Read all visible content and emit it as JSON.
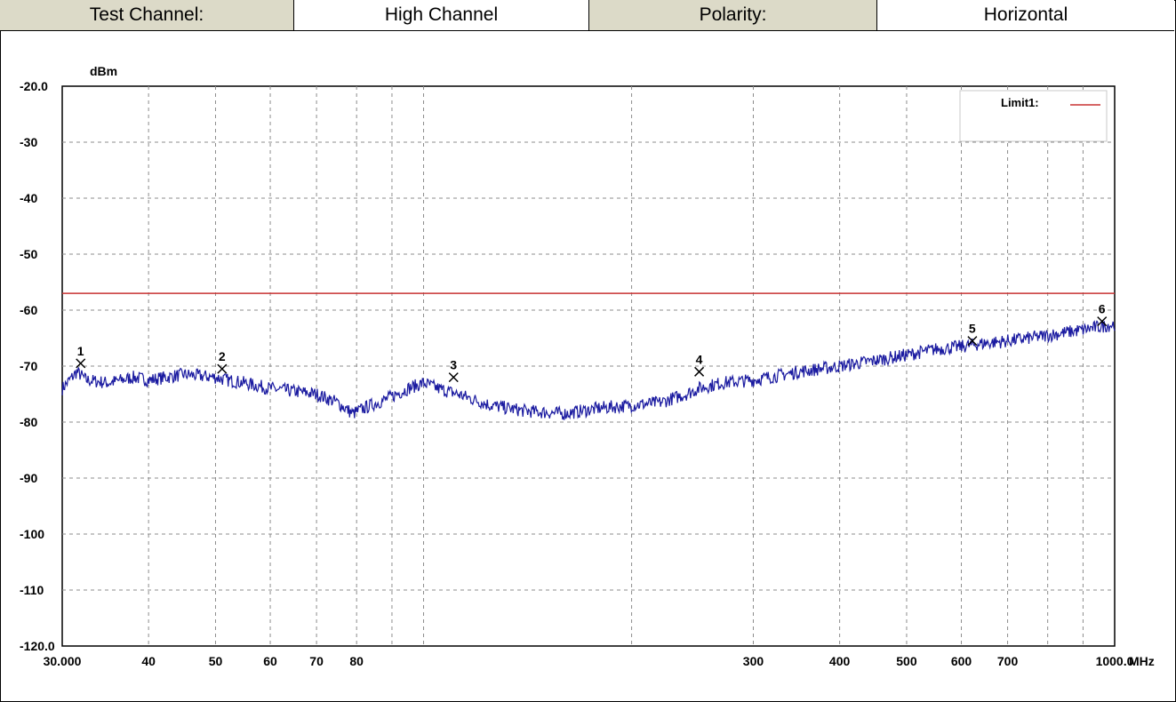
{
  "header": {
    "channel_label": "Test Channel:",
    "channel_value": "High Channel",
    "polarity_label": "Polarity:",
    "polarity_value": "Horizontal"
  },
  "colors": {
    "header_label_bg": "#dcdac8",
    "trace": "#1a1aa0",
    "limit": "#c83232",
    "grid": "#8c8c8c"
  },
  "chart_data": {
    "type": "line",
    "y_unit": "dBm",
    "x_unit": "MHz",
    "x_scale": "log",
    "xlim": [
      30,
      1000
    ],
    "ylim": [
      -120,
      -20
    ],
    "y_ticks": [
      "-20.0",
      "-30",
      "-40",
      "-50",
      "-60",
      "-70",
      "-80",
      "-90",
      "-100",
      "-110",
      "-120.0"
    ],
    "x_ticks": [
      {
        "label": "30.000",
        "value": 30
      },
      {
        "label": "40",
        "value": 40
      },
      {
        "label": "50",
        "value": 50
      },
      {
        "label": "60",
        "value": 60
      },
      {
        "label": "70",
        "value": 70
      },
      {
        "label": "80",
        "value": 80
      },
      {
        "label": "300",
        "value": 300
      },
      {
        "label": "400",
        "value": 400
      },
      {
        "label": "500",
        "value": 500
      },
      {
        "label": "600",
        "value": 600
      },
      {
        "label": "700",
        "value": 700
      },
      {
        "label": "1000.0",
        "value": 1000
      }
    ],
    "extra_gridlines": [
      90,
      100,
      200,
      800,
      900
    ],
    "grid": true,
    "legend": {
      "position": "top-right",
      "entries": [
        {
          "label": "Limit1:"
        }
      ]
    },
    "limit": -57,
    "series": [
      {
        "type": "trace",
        "points": [
          [
            30,
            -74
          ],
          [
            31.5,
            -71
          ],
          [
            32.5,
            -72.5
          ],
          [
            35,
            -73
          ],
          [
            38,
            -72
          ],
          [
            40,
            -72.5
          ],
          [
            45,
            -71.5
          ],
          [
            50,
            -72
          ],
          [
            52,
            -72.5
          ],
          [
            55,
            -73
          ],
          [
            60,
            -74
          ],
          [
            65,
            -74.5
          ],
          [
            70,
            -75
          ],
          [
            75,
            -76.5
          ],
          [
            79,
            -78.5
          ],
          [
            82,
            -77.5
          ],
          [
            88,
            -76
          ],
          [
            95,
            -74
          ],
          [
            100,
            -73
          ],
          [
            105,
            -74
          ],
          [
            112,
            -75
          ],
          [
            125,
            -77
          ],
          [
            140,
            -78
          ],
          [
            160,
            -78.5
          ],
          [
            180,
            -77.5
          ],
          [
            200,
            -77
          ],
          [
            220,
            -76.5
          ],
          [
            240,
            -75
          ],
          [
            250,
            -74
          ],
          [
            270,
            -73
          ],
          [
            300,
            -72.5
          ],
          [
            350,
            -71
          ],
          [
            400,
            -70
          ],
          [
            450,
            -69
          ],
          [
            500,
            -68
          ],
          [
            550,
            -67
          ],
          [
            600,
            -66.5
          ],
          [
            640,
            -66
          ],
          [
            700,
            -65.5
          ],
          [
            750,
            -65
          ],
          [
            800,
            -64.5
          ],
          [
            900,
            -63.5
          ],
          [
            1000,
            -62.5
          ]
        ]
      }
    ],
    "markers": [
      {
        "label": "1",
        "x": 31.9,
        "y": -69.5
      },
      {
        "label": "2",
        "x": 51.1,
        "y": -70.5
      },
      {
        "label": "3",
        "x": 110.5,
        "y": -72
      },
      {
        "label": "4",
        "x": 250.5,
        "y": -71
      },
      {
        "label": "5",
        "x": 622.4,
        "y": -65.5
      },
      {
        "label": "6",
        "x": 958.7,
        "y": -62
      }
    ]
  }
}
